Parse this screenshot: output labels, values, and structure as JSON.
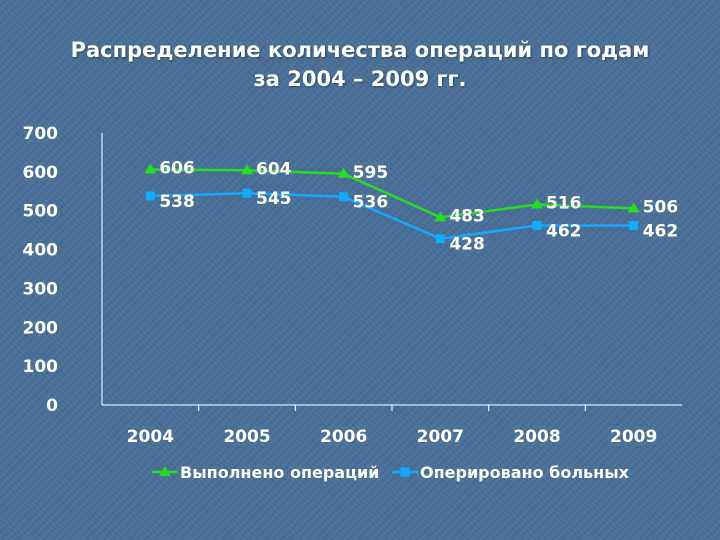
{
  "title_lines": [
    "Распределение количества операций по годам",
    "за 2004 – 2009 гг."
  ],
  "colors": {
    "background": "#4a6f9a",
    "series1": "#22dd22",
    "series2": "#11aaff",
    "text": "#ffffff",
    "axis": "#ffffff"
  },
  "chart_data": {
    "type": "line",
    "categories": [
      "2004",
      "2005",
      "2006",
      "2007",
      "2008",
      "2009"
    ],
    "series": [
      {
        "name": "Выполнено операций",
        "values": [
          606,
          604,
          595,
          483,
          516,
          506
        ],
        "marker": "triangle",
        "color": "#22dd22"
      },
      {
        "name": "Оперировано больных",
        "values": [
          538,
          545,
          536,
          428,
          462,
          462
        ],
        "marker": "square",
        "color": "#11aaff"
      }
    ],
    "ylim": [
      0,
      700
    ],
    "yticks": [
      0,
      100,
      200,
      300,
      400,
      500,
      600,
      700
    ],
    "xlabel": "",
    "ylabel": "",
    "grid": false,
    "legend_position": "bottom",
    "data_labels": true
  }
}
